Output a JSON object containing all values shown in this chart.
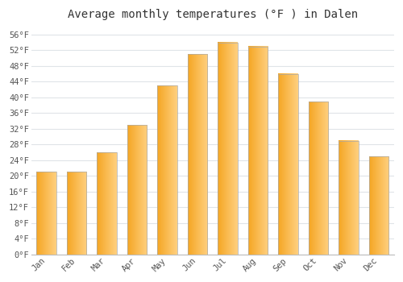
{
  "title": "Average monthly temperatures (°F ) in Dalen",
  "months": [
    "Jan",
    "Feb",
    "Mar",
    "Apr",
    "May",
    "Jun",
    "Jul",
    "Aug",
    "Sep",
    "Oct",
    "Nov",
    "Dec"
  ],
  "values": [
    21,
    21,
    26,
    33,
    43,
    51,
    54,
    53,
    46,
    39,
    29,
    25
  ],
  "bar_color_left": "#FFA500",
  "bar_color_right": "#FFD070",
  "bar_edge_color": "#AAAAAA",
  "background_color": "#FFFFFF",
  "grid_color": "#E0E4E8",
  "ylim": [
    0,
    58
  ],
  "yticks": [
    0,
    4,
    8,
    12,
    16,
    20,
    24,
    28,
    32,
    36,
    40,
    44,
    48,
    52,
    56
  ],
  "title_fontsize": 10,
  "tick_fontsize": 7.5,
  "font_family": "monospace"
}
